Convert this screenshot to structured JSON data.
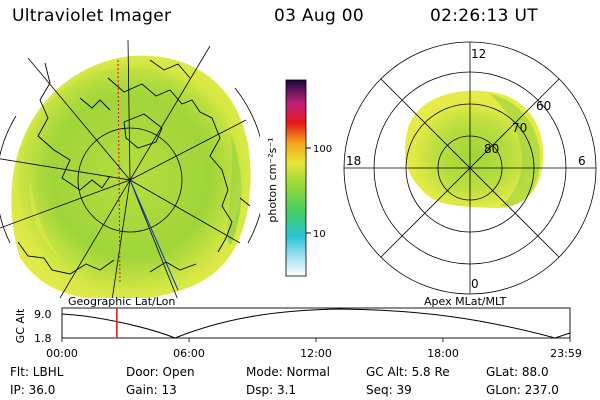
{
  "header": {
    "title": "Ultraviolet Imager",
    "date": "03 Aug 00",
    "time": "02:26:13 UT"
  },
  "colorbar": {
    "unit_label": "photon cm⁻²s⁻¹",
    "tick_100": "100",
    "tick_10": "10"
  },
  "geo_panel": {
    "caption": "Geographic Lat/Lon"
  },
  "polar_panel": {
    "caption": "Apex MLat/MLT",
    "mlt_top": "12",
    "mlt_left": "18",
    "mlt_right": "6",
    "mlt_bottom": "0",
    "lat_60": "60",
    "lat_70": "70",
    "lat_80": "80"
  },
  "altitude_plot": {
    "axis_label": "GC Alt",
    "y_max": "9.0",
    "y_min": "1.8",
    "x_ticks": [
      "00:00",
      "06:00",
      "12:00",
      "18:00",
      "23:59"
    ],
    "cursor_fraction": 0.108
  },
  "info": {
    "filter": "Flt: LBHL",
    "ip": "IP: 36.0",
    "door": "Door: Open",
    "gain": "Gain: 13",
    "mode": "Mode: Normal",
    "dsp": "Dsp:    3.1",
    "gc_alt": "GC Alt: 5.8 Re",
    "seq": "Seq: 39",
    "glat": "GLat:  88.0",
    "glon": "GLon: 237.0"
  },
  "colors": {
    "auroral_green": "#9ed93a",
    "auroral_yellow": "#e4ea44",
    "background": "#ffffff",
    "cursor": "#e01010"
  }
}
